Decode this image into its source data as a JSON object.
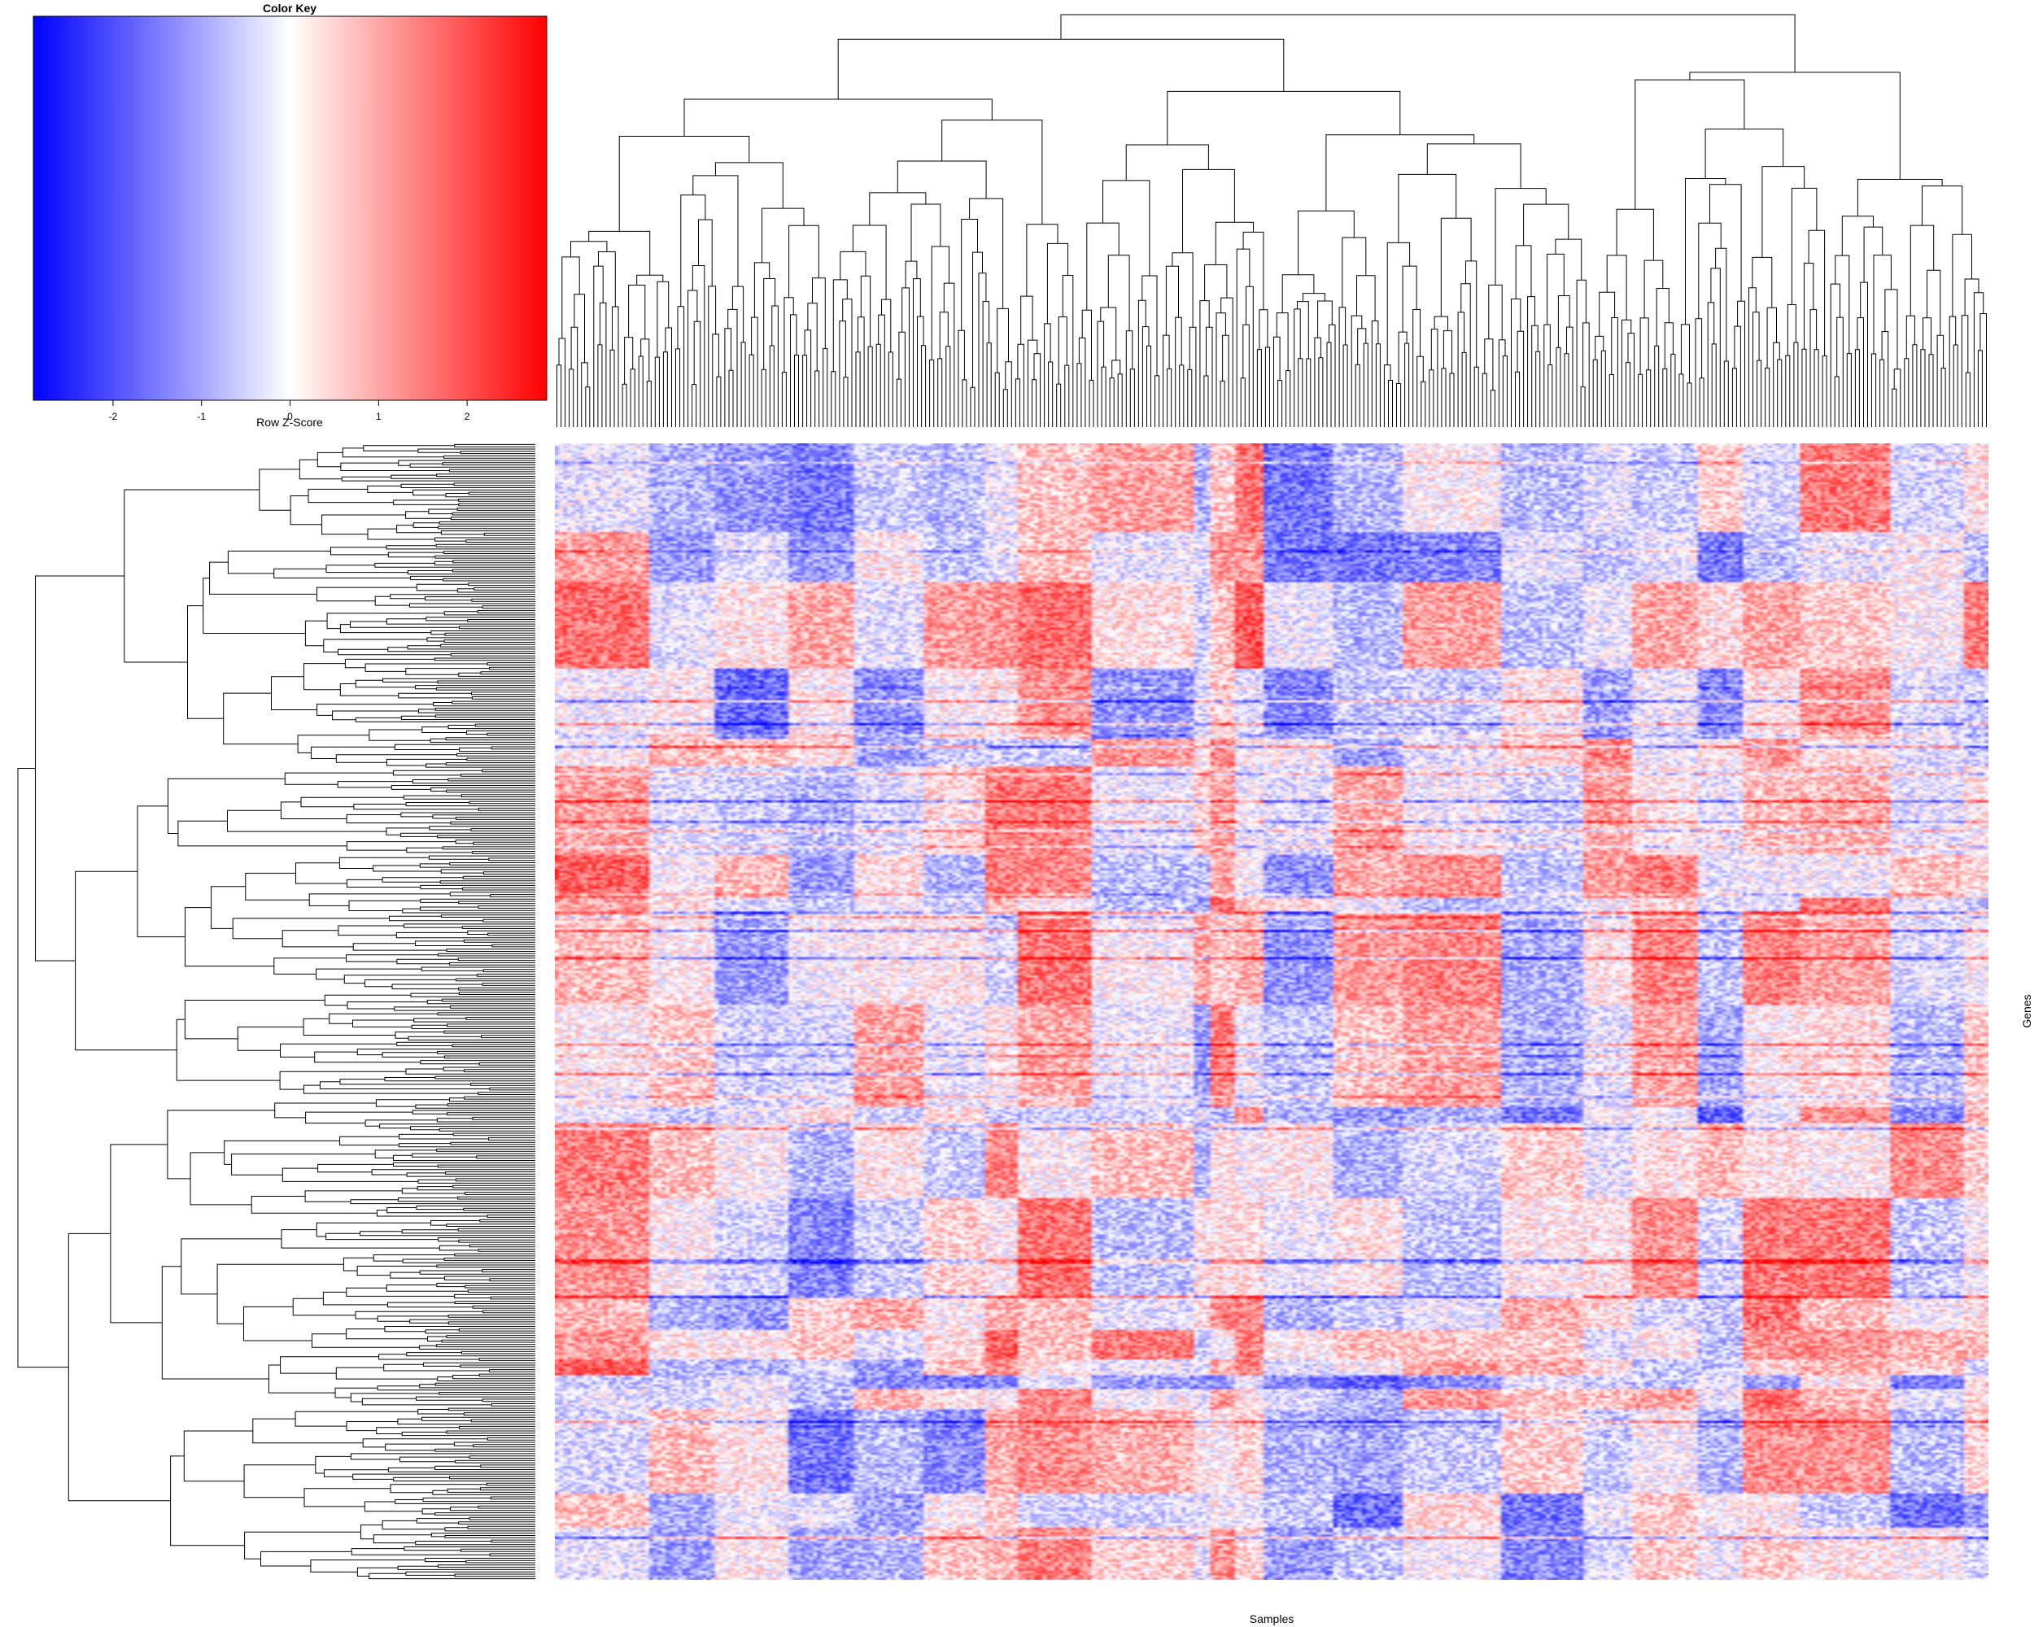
{
  "chart_data": {
    "type": "heatmap",
    "title": "",
    "xlabel": "Samples",
    "ylabel": "Genes",
    "n_samples": 350,
    "n_genes": 500,
    "row_dendrogram": true,
    "column_dendrogram": true,
    "color_key": {
      "title": "Color Key",
      "label": "Row Z-Score",
      "range": [
        -2.9,
        2.9
      ],
      "ticks": [
        -2,
        -1,
        0,
        1,
        2
      ],
      "tick_labels": [
        "-2",
        "-1",
        "0",
        "1",
        "2"
      ],
      "colors": [
        "#0000ff",
        "#ffffff",
        "#ff0000"
      ]
    }
  }
}
